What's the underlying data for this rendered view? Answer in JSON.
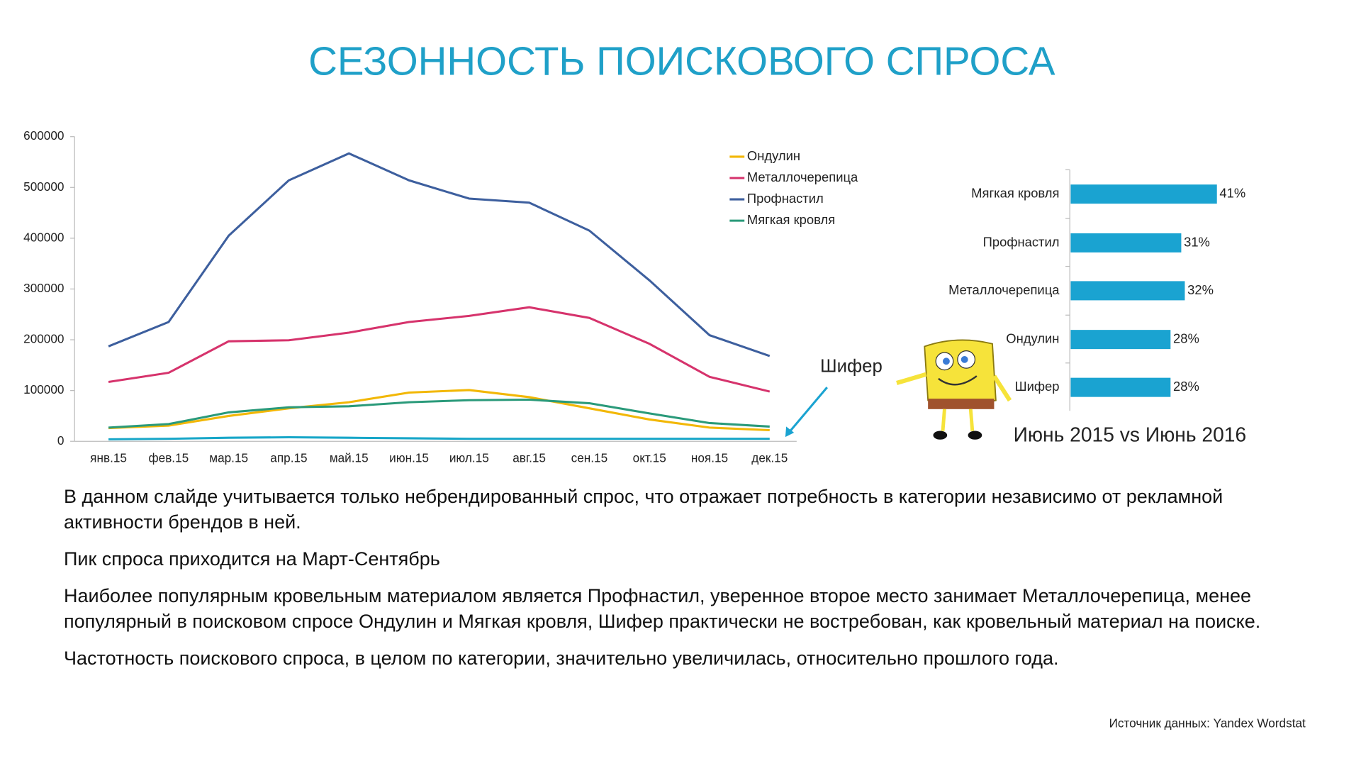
{
  "title": "СЕЗОННОСТЬ ПОИСКОВОГО СПРОСА",
  "chart_data": [
    {
      "type": "line",
      "categories": [
        "янв.15",
        "фев.15",
        "мар.15",
        "апр.15",
        "май.15",
        "июн.15",
        "июл.15",
        "авг.15",
        "сен.15",
        "окт.15",
        "ноя.15",
        "дек.15"
      ],
      "ylim": [
        0,
        600000
      ],
      "yticks": [
        0,
        100000,
        200000,
        300000,
        400000,
        500000,
        600000
      ],
      "legend": "top-right",
      "series": [
        {
          "name": "Ондулин",
          "color": "#f2b705",
          "values": [
            26000,
            31000,
            50000,
            65000,
            77000,
            96000,
            101000,
            87000,
            65000,
            43000,
            27000,
            22000
          ]
        },
        {
          "name": "Металлочерепица",
          "color": "#d6336c",
          "values": [
            117000,
            135000,
            197000,
            199000,
            214000,
            235000,
            247000,
            264000,
            243000,
            192000,
            127000,
            98000
          ]
        },
        {
          "name": "Профнастил",
          "color": "#3d5f9e",
          "values": [
            187000,
            235000,
            405000,
            514000,
            567000,
            514000,
            478000,
            470000,
            415000,
            317000,
            209000,
            168000
          ]
        },
        {
          "name": "Мягкая кровля",
          "color": "#2a9a7a",
          "values": [
            27000,
            34000,
            57000,
            67000,
            69000,
            77000,
            81000,
            82000,
            75000,
            55000,
            36000,
            29000
          ]
        },
        {
          "name": "Шифер",
          "color": "#17a6c8",
          "in_legend": false,
          "values": [
            4000,
            5000,
            7000,
            8000,
            7000,
            6000,
            5000,
            5000,
            5000,
            5000,
            5000,
            5000
          ]
        }
      ]
    },
    {
      "type": "hbar",
      "xlabel": "Июнь 2015 vs Июнь 2016",
      "color": "#1aa3d1",
      "xlim": [
        0,
        50
      ],
      "categories": [
        "Мягкая кровля",
        "Профнастил",
        "Металлочерепица",
        "Ондулин",
        "Шифер"
      ],
      "values": [
        41,
        31,
        32,
        28,
        28
      ],
      "value_labels": [
        "41%",
        "31%",
        "32%",
        "28%",
        "28%"
      ]
    }
  ],
  "paragraphs": [
    "В данном слайде учитывается только небрендированный спрос, что отражает потребность в категории независимо от рекламной активности брендов в ней.",
    "Пик спроса приходится на Март-Сентябрь",
    "Наиболее популярным кровельным материалом является Профнастил, уверенное второе место занимает Металлочерепица, менее популярный в поисковом спросе Ондулин и Мягкая кровля, Шифер практически не востребован, как кровельный материал на поиске.",
    "Частотность поискового спроса, в целом по категории, значительно увеличилась, относительно прошлого года."
  ],
  "source": "Источник данных: Yandex Wordstat"
}
